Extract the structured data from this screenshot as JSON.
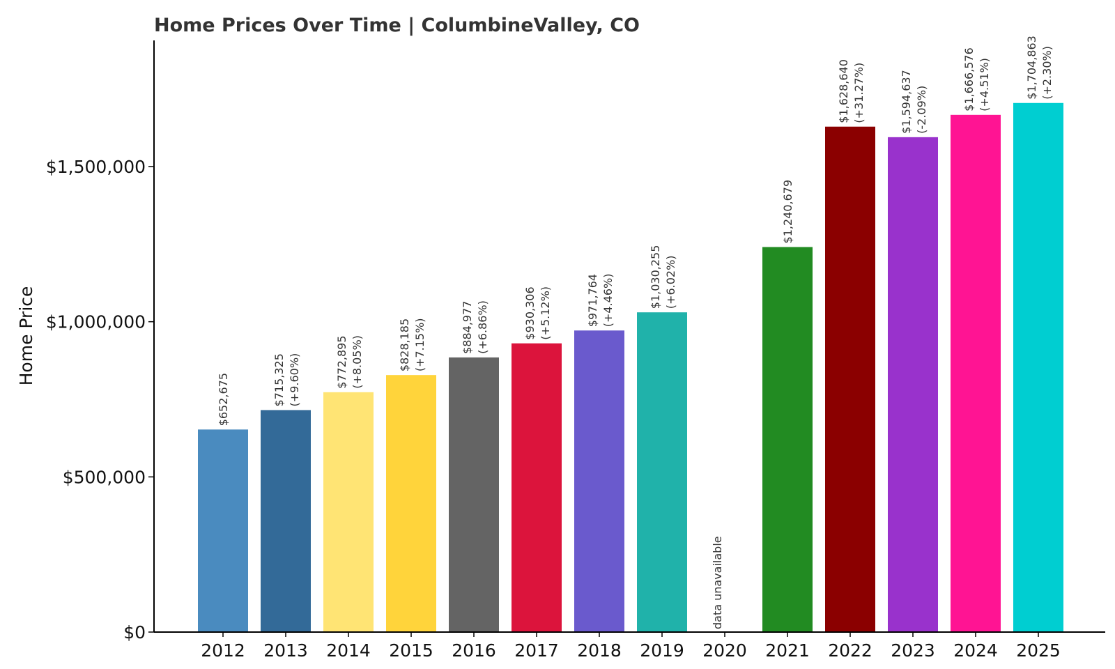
{
  "chart_data": {
    "type": "bar",
    "title": "Home Prices Over Time | ColumbineValley, CO",
    "xlabel": "",
    "ylabel": "Home Price",
    "ylim": [
      0,
      1900000
    ],
    "yticks": [
      {
        "value": 0,
        "label": "$0"
      },
      {
        "value": 500000,
        "label": "$500,000"
      },
      {
        "value": 1000000,
        "label": "$1,000,000"
      },
      {
        "value": 1500000,
        "label": "$1,500,000"
      }
    ],
    "grid": false,
    "legend": "none",
    "bars": [
      {
        "year": "2012",
        "value": 652675,
        "price_label": "$652,675",
        "change_label": "",
        "color": "#4a8bbf"
      },
      {
        "year": "2013",
        "value": 715325,
        "price_label": "$715,325",
        "change_label": "(+9.60%)",
        "color": "#336a98"
      },
      {
        "year": "2014",
        "value": 772895,
        "price_label": "$772,895",
        "change_label": "(+8.05%)",
        "color": "#ffe474"
      },
      {
        "year": "2015",
        "value": 828185,
        "price_label": "$828,185",
        "change_label": "(+7.15%)",
        "color": "#ffd43b"
      },
      {
        "year": "2016",
        "value": 884977,
        "price_label": "$884,977",
        "change_label": "(+6.86%)",
        "color": "#646464"
      },
      {
        "year": "2017",
        "value": 930306,
        "price_label": "$930,306",
        "change_label": "(+5.12%)",
        "color": "#dc143c"
      },
      {
        "year": "2018",
        "value": 971764,
        "price_label": "$971,764",
        "change_label": "(+4.46%)",
        "color": "#6a5acd"
      },
      {
        "year": "2019",
        "value": 1030255,
        "price_label": "$1,030,255",
        "change_label": "(+6.02%)",
        "color": "#20b2aa"
      },
      {
        "year": "2020",
        "value": null,
        "price_label": "data unavailable",
        "change_label": "",
        "color": "#ffffff"
      },
      {
        "year": "2021",
        "value": 1240679,
        "price_label": "$1,240,679",
        "change_label": "",
        "color": "#228b22"
      },
      {
        "year": "2022",
        "value": 1628640,
        "price_label": "$1,628,640",
        "change_label": "(+31.27%)",
        "color": "#8b0000"
      },
      {
        "year": "2023",
        "value": 1594637,
        "price_label": "$1,594,637",
        "change_label": "(-2.09%)",
        "color": "#9932cc"
      },
      {
        "year": "2024",
        "value": 1666576,
        "price_label": "$1,666,576",
        "change_label": "(+4.51%)",
        "color": "#ff1493"
      },
      {
        "year": "2025",
        "value": 1704863,
        "price_label": "$1,704,863",
        "change_label": "(+2.30%)",
        "color": "#00ced1"
      }
    ]
  }
}
